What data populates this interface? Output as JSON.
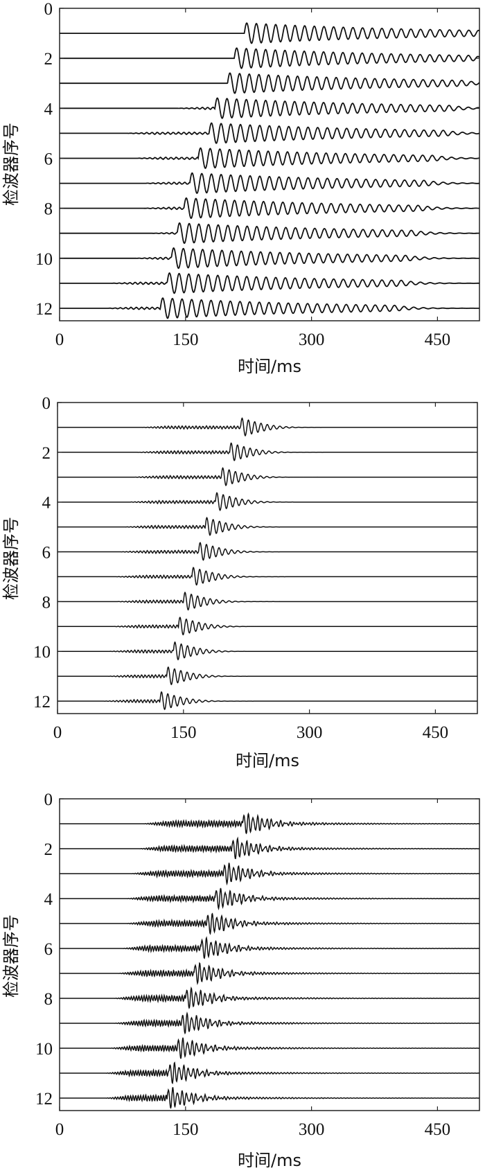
{
  "chart_data": [
    {
      "type": "line",
      "title": "",
      "xlabel": "时间/ms",
      "ylabel": "检波器序号",
      "xlim": [
        0,
        500
      ],
      "ylim": [
        0,
        12.5
      ],
      "y_reversed": true,
      "xticks": [
        0,
        150,
        300,
        450
      ],
      "xtick_labels": [
        "0",
        "150",
        "300",
        "450"
      ],
      "yticks": [
        0,
        2,
        4,
        6,
        8,
        10,
        12
      ],
      "ytick_labels": [
        "0",
        "2",
        "4",
        "6",
        "8",
        "10",
        "12"
      ],
      "grid": false,
      "series": [
        {
          "trace": 1,
          "first_arrival_ms": 220,
          "trace_start_ms": 0,
          "pre_noise_start_ms": null
        },
        {
          "trace": 2,
          "first_arrival_ms": 208,
          "trace_start_ms": 0,
          "pre_noise_start_ms": null
        },
        {
          "trace": 3,
          "first_arrival_ms": 200,
          "trace_start_ms": 0,
          "pre_noise_start_ms": null
        },
        {
          "trace": 4,
          "first_arrival_ms": 185,
          "trace_start_ms": 0,
          "pre_noise_start_ms": 140
        },
        {
          "trace": 5,
          "first_arrival_ms": 178,
          "trace_start_ms": 0,
          "pre_noise_start_ms": 80
        },
        {
          "trace": 6,
          "first_arrival_ms": 165,
          "trace_start_ms": 0,
          "pre_noise_start_ms": 90
        },
        {
          "trace": 7,
          "first_arrival_ms": 155,
          "trace_start_ms": 0,
          "pre_noise_start_ms": 100
        },
        {
          "trace": 8,
          "first_arrival_ms": 148,
          "trace_start_ms": 0,
          "pre_noise_start_ms": 100
        },
        {
          "trace": 9,
          "first_arrival_ms": 140,
          "trace_start_ms": 0,
          "pre_noise_start_ms": 110
        },
        {
          "trace": 10,
          "first_arrival_ms": 133,
          "trace_start_ms": 0,
          "pre_noise_start_ms": 90
        },
        {
          "trace": 11,
          "first_arrival_ms": 128,
          "trace_start_ms": 0,
          "pre_noise_start_ms": 60
        },
        {
          "trace": 12,
          "first_arrival_ms": 120,
          "trace_start_ms": 0,
          "pre_noise_start_ms": 55
        }
      ]
    },
    {
      "type": "line",
      "title": "",
      "xlabel": "时间/ms",
      "ylabel": "检波器序号",
      "xlim": [
        0,
        500
      ],
      "ylim": [
        0,
        12.5
      ],
      "y_reversed": true,
      "xticks": [
        0,
        150,
        300,
        450
      ],
      "xtick_labels": [
        "0",
        "150",
        "300",
        "450"
      ],
      "yticks": [
        0,
        2,
        4,
        6,
        8,
        10,
        12
      ],
      "ytick_labels": [
        "0",
        "2",
        "4",
        "6",
        "8",
        "10",
        "12"
      ],
      "grid": false,
      "series": [
        {
          "trace": 1,
          "first_arrival_ms": 218,
          "trace_start_ms": 0,
          "pre_noise_start_ms": 100
        },
        {
          "trace": 2,
          "first_arrival_ms": 205,
          "trace_start_ms": 0,
          "pre_noise_start_ms": 95
        },
        {
          "trace": 3,
          "first_arrival_ms": 195,
          "trace_start_ms": 0,
          "pre_noise_start_ms": 90
        },
        {
          "trace": 4,
          "first_arrival_ms": 188,
          "trace_start_ms": 0,
          "pre_noise_start_ms": 85
        },
        {
          "trace": 5,
          "first_arrival_ms": 176,
          "trace_start_ms": 0,
          "pre_noise_start_ms": 80
        },
        {
          "trace": 6,
          "first_arrival_ms": 168,
          "trace_start_ms": 0,
          "pre_noise_start_ms": 75
        },
        {
          "trace": 7,
          "first_arrival_ms": 160,
          "trace_start_ms": 0,
          "pre_noise_start_ms": 70
        },
        {
          "trace": 8,
          "first_arrival_ms": 150,
          "trace_start_ms": 0,
          "pre_noise_start_ms": 70
        },
        {
          "trace": 9,
          "first_arrival_ms": 144,
          "trace_start_ms": 0,
          "pre_noise_start_ms": 65
        },
        {
          "trace": 10,
          "first_arrival_ms": 138,
          "trace_start_ms": 0,
          "pre_noise_start_ms": 60
        },
        {
          "trace": 11,
          "first_arrival_ms": 130,
          "trace_start_ms": 0,
          "pre_noise_start_ms": 60
        },
        {
          "trace": 12,
          "first_arrival_ms": 122,
          "trace_start_ms": 0,
          "pre_noise_start_ms": 55
        }
      ]
    },
    {
      "type": "line",
      "title": "",
      "xlabel": "时间/ms",
      "ylabel": "检波器序号",
      "xlim": [
        0,
        500
      ],
      "ylim": [
        0,
        12.5
      ],
      "y_reversed": true,
      "xticks": [
        0,
        150,
        300,
        450
      ],
      "xtick_labels": [
        "0",
        "150",
        "300",
        "450"
      ],
      "yticks": [
        0,
        2,
        4,
        6,
        8,
        10,
        12
      ],
      "ytick_labels": [
        "0",
        "2",
        "4",
        "6",
        "8",
        "10",
        "12"
      ],
      "grid": false,
      "series": [
        {
          "trace": 1,
          "first_arrival_ms": 218,
          "trace_start_ms": 0,
          "pre_noise_start_ms": 100
        },
        {
          "trace": 2,
          "first_arrival_ms": 205,
          "trace_start_ms": 0,
          "pre_noise_start_ms": 95
        },
        {
          "trace": 3,
          "first_arrival_ms": 195,
          "trace_start_ms": 0,
          "pre_noise_start_ms": 85
        },
        {
          "trace": 4,
          "first_arrival_ms": 185,
          "trace_start_ms": 0,
          "pre_noise_start_ms": 80
        },
        {
          "trace": 5,
          "first_arrival_ms": 175,
          "trace_start_ms": 0,
          "pre_noise_start_ms": 80
        },
        {
          "trace": 6,
          "first_arrival_ms": 168,
          "trace_start_ms": 0,
          "pre_noise_start_ms": 75
        },
        {
          "trace": 7,
          "first_arrival_ms": 160,
          "trace_start_ms": 0,
          "pre_noise_start_ms": 70
        },
        {
          "trace": 8,
          "first_arrival_ms": 150,
          "trace_start_ms": 0,
          "pre_noise_start_ms": 65
        },
        {
          "trace": 9,
          "first_arrival_ms": 145,
          "trace_start_ms": 0,
          "pre_noise_start_ms": 65
        },
        {
          "trace": 10,
          "first_arrival_ms": 140,
          "trace_start_ms": 0,
          "pre_noise_start_ms": 60
        },
        {
          "trace": 11,
          "first_arrival_ms": 130,
          "trace_start_ms": 0,
          "pre_noise_start_ms": 55
        },
        {
          "trace": 12,
          "first_arrival_ms": 128,
          "trace_start_ms": 0,
          "pre_noise_start_ms": 55
        }
      ]
    }
  ]
}
